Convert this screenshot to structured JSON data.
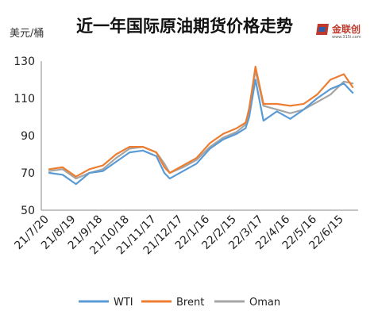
{
  "chart_data": {
    "type": "line",
    "title": "近一年国际原油期货价格走势",
    "ylabel": "美元/桶",
    "ylim": [
      50,
      130
    ],
    "yticks": [
      50,
      70,
      90,
      110,
      130
    ],
    "grid": false,
    "legend_position": "bottom",
    "x_ticks": [
      "21/7/20",
      "21/8/19",
      "21/9/18",
      "21/10/18",
      "21/11/17",
      "21/12/17",
      "22/1/16",
      "22/2/15",
      "22/3/17",
      "22/4/16",
      "22/5/16",
      "22/6/15"
    ],
    "x": [
      "21/7/20",
      "21/8/4",
      "21/8/19",
      "21/9/3",
      "21/9/18",
      "21/10/3",
      "21/10/18",
      "21/11/2",
      "21/11/17",
      "21/11/26",
      "21/12/2",
      "21/12/17",
      "22/1/1",
      "22/1/16",
      "22/1/31",
      "22/2/15",
      "22/2/25",
      "22/3/1",
      "22/3/8",
      "22/3/17",
      "22/4/1",
      "22/4/16",
      "22/5/1",
      "22/5/16",
      "22/5/31",
      "22/6/15",
      "22/6/25"
    ],
    "series": [
      {
        "name": "WTI",
        "color": "#5b9bd5",
        "values": [
          70,
          69,
          64,
          70,
          71,
          76,
          81,
          82,
          79,
          70,
          67,
          71,
          75,
          83,
          88,
          91,
          94,
          100,
          120,
          98,
          103,
          99,
          104,
          110,
          115,
          118,
          113
        ]
      },
      {
        "name": "Brent",
        "color": "#ed7d31",
        "values": [
          72,
          73,
          68,
          72,
          74,
          80,
          84,
          84,
          81,
          73,
          70,
          74,
          78,
          86,
          91,
          94,
          97,
          104,
          127,
          107,
          107,
          106,
          107,
          112,
          120,
          123,
          116
        ]
      },
      {
        "name": "Oman",
        "color": "#a5a5a5",
        "values": [
          71,
          72,
          67,
          70,
          72,
          78,
          83,
          84,
          81,
          75,
          70,
          73,
          77,
          84,
          89,
          92,
          96,
          105,
          125,
          106,
          104,
          102,
          104,
          108,
          112,
          119,
          118
        ]
      }
    ]
  },
  "logo": {
    "text": "金联创",
    "sub": "www.315i.com"
  },
  "legend": {
    "labels": [
      "WTI",
      "Brent",
      "Oman"
    ]
  }
}
